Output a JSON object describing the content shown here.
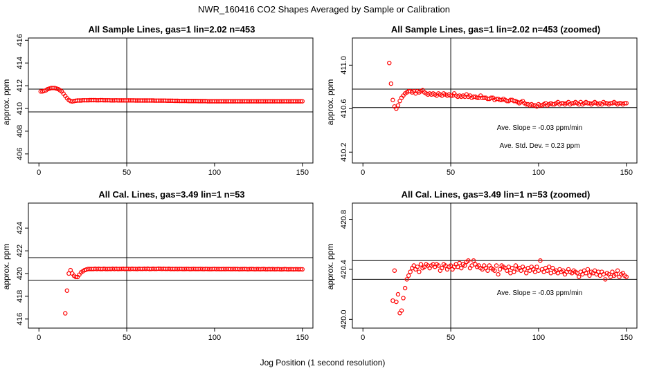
{
  "page_title": "NWR_160416  CO2 Shapes Averaged by Sample or Calibration",
  "shared_xlabel": "Jog Position (1 second resolution)",
  "chart_data": [
    {
      "type": "scatter",
      "title": "All Sample Lines, gas=1 lin=2.02 n=453",
      "xlabel": "",
      "ylabel": "approx. ppm",
      "xlim": [
        -6,
        156
      ],
      "ylim": [
        405.2,
        416.2
      ],
      "xticks": [
        0,
        50,
        100,
        150
      ],
      "yticks": [
        406,
        408,
        410,
        412,
        414,
        416
      ],
      "ytick_labels": [
        "406",
        "408",
        "410",
        "412",
        "414",
        "416"
      ],
      "hlines": [
        411.7,
        409.7
      ],
      "vline": 50,
      "annotations": [],
      "x": [
        1,
        2,
        3,
        4,
        5,
        6,
        7,
        8,
        9,
        10,
        11,
        12,
        13,
        14,
        15,
        16,
        17,
        18,
        19,
        20,
        21,
        22,
        23,
        24,
        25,
        26,
        27,
        28,
        29,
        30,
        31,
        32,
        33,
        34,
        35,
        36,
        37,
        38,
        39,
        40,
        41,
        42,
        43,
        44,
        45,
        46,
        47,
        48,
        49,
        50,
        51,
        52,
        53,
        54,
        55,
        56,
        57,
        58,
        59,
        60,
        61,
        62,
        63,
        64,
        65,
        66,
        67,
        68,
        69,
        70,
        71,
        72,
        73,
        74,
        75,
        76,
        77,
        78,
        79,
        80,
        81,
        82,
        83,
        84,
        85,
        86,
        87,
        88,
        89,
        90,
        91,
        92,
        93,
        94,
        95,
        96,
        97,
        98,
        99,
        100,
        101,
        102,
        103,
        104,
        105,
        106,
        107,
        108,
        109,
        110,
        111,
        112,
        113,
        114,
        115,
        116,
        117,
        118,
        119,
        120,
        121,
        122,
        123,
        124,
        125,
        126,
        127,
        128,
        129,
        130,
        131,
        132,
        133,
        134,
        135,
        136,
        137,
        138,
        139,
        140,
        141,
        142,
        143,
        144,
        145,
        146,
        147,
        148,
        149,
        150
      ],
      "y": [
        411.5,
        411.5,
        411.55,
        411.6,
        411.7,
        411.75,
        411.8,
        411.8,
        411.8,
        411.75,
        411.7,
        411.6,
        411.5,
        411.3,
        411.1,
        410.9,
        410.75,
        410.65,
        410.62,
        410.65,
        410.68,
        410.7,
        410.7,
        410.7,
        410.72,
        410.72,
        410.72,
        410.72,
        410.73,
        410.73,
        410.73,
        410.73,
        410.72,
        410.72,
        410.73,
        410.73,
        410.72,
        410.72,
        410.72,
        410.72,
        410.71,
        410.71,
        410.71,
        410.72,
        410.71,
        410.71,
        410.71,
        410.71,
        410.71,
        410.71,
        410.71,
        410.71,
        410.71,
        410.71,
        410.7,
        410.7,
        410.7,
        410.7,
        410.7,
        410.7,
        410.7,
        410.7,
        410.7,
        410.7,
        410.7,
        410.69,
        410.69,
        410.69,
        410.69,
        410.69,
        410.69,
        410.69,
        410.68,
        410.68,
        410.68,
        410.68,
        410.67,
        410.67,
        410.67,
        410.66,
        410.66,
        410.66,
        410.66,
        410.66,
        410.65,
        410.65,
        410.65,
        410.65,
        410.65,
        410.65,
        410.64,
        410.64,
        410.64,
        410.64,
        410.64,
        410.63,
        410.63,
        410.63,
        410.63,
        410.63,
        410.63,
        410.63,
        410.63,
        410.63,
        410.63,
        410.63,
        410.63,
        410.63,
        410.63,
        410.63,
        410.63,
        410.63,
        410.63,
        410.63,
        410.63,
        410.63,
        410.63,
        410.63,
        410.63,
        410.63,
        410.63,
        410.63,
        410.63,
        410.63,
        410.63,
        410.63,
        410.63,
        410.63,
        410.63,
        410.63,
        410.63,
        410.63,
        410.63,
        410.63,
        410.63,
        410.63,
        410.63,
        410.63,
        410.63,
        410.63,
        410.63,
        410.63,
        410.63,
        410.63,
        410.63,
        410.63,
        410.63,
        410.63,
        410.63,
        410.63
      ]
    },
    {
      "type": "scatter",
      "title": "All Sample Lines, gas=1 lin=2.02 n=453 (zoomed)",
      "xlabel": "",
      "ylabel": "approx. ppm",
      "xlim": [
        -6,
        156
      ],
      "ylim": [
        410.1,
        411.25
      ],
      "xticks": [
        0,
        50,
        100,
        150
      ],
      "yticks": [
        410.2,
        410.6,
        411.0
      ],
      "ytick_labels": [
        "410.2",
        "410.6",
        "411.0"
      ],
      "hlines": [
        410.78,
        410.61
      ],
      "vline": 50,
      "annotations": [
        "Ave. Slope =  -0.03  ppm/min",
        "Ave. Std. Dev. =  0.23  ppm"
      ],
      "x": [
        15,
        16,
        17,
        18,
        19,
        20,
        21,
        22,
        23,
        24,
        25,
        26,
        27,
        28,
        29,
        30,
        31,
        32,
        33,
        34,
        35,
        36,
        37,
        38,
        39,
        40,
        41,
        42,
        43,
        44,
        45,
        46,
        47,
        48,
        49,
        50,
        51,
        52,
        53,
        54,
        55,
        56,
        57,
        58,
        59,
        60,
        61,
        62,
        63,
        64,
        65,
        66,
        67,
        68,
        69,
        70,
        71,
        72,
        73,
        74,
        75,
        76,
        77,
        78,
        79,
        80,
        81,
        82,
        83,
        84,
        85,
        86,
        87,
        88,
        89,
        90,
        91,
        92,
        93,
        94,
        95,
        96,
        97,
        98,
        99,
        100,
        101,
        102,
        103,
        104,
        105,
        106,
        107,
        108,
        109,
        110,
        111,
        112,
        113,
        114,
        115,
        116,
        117,
        118,
        119,
        120,
        121,
        122,
        123,
        124,
        125,
        126,
        127,
        128,
        129,
        130,
        131,
        132,
        133,
        134,
        135,
        136,
        137,
        138,
        139,
        140,
        141,
        142,
        143,
        144,
        145,
        146,
        147,
        148,
        149,
        150
      ],
      "y": [
        411.02,
        410.83,
        410.68,
        410.62,
        410.6,
        410.63,
        410.67,
        410.7,
        410.72,
        410.74,
        410.75,
        410.76,
        410.76,
        410.75,
        410.76,
        410.74,
        410.76,
        410.75,
        410.76,
        410.77,
        410.75,
        410.74,
        410.73,
        410.74,
        410.73,
        410.74,
        410.73,
        410.72,
        410.74,
        410.73,
        410.72,
        410.74,
        410.73,
        410.72,
        410.73,
        410.72,
        410.72,
        410.74,
        410.72,
        410.71,
        410.72,
        410.71,
        410.72,
        410.71,
        410.73,
        410.71,
        410.72,
        410.7,
        410.71,
        410.71,
        410.7,
        410.7,
        410.72,
        410.7,
        410.7,
        410.7,
        410.69,
        410.69,
        410.7,
        410.7,
        410.68,
        410.69,
        410.69,
        410.68,
        410.68,
        410.69,
        410.68,
        410.67,
        410.67,
        410.68,
        410.68,
        410.67,
        410.67,
        410.66,
        410.65,
        410.66,
        410.67,
        410.65,
        410.64,
        410.64,
        410.63,
        410.64,
        410.63,
        410.63,
        410.62,
        410.64,
        410.63,
        410.63,
        410.64,
        410.65,
        410.63,
        410.64,
        410.65,
        410.64,
        410.64,
        410.65,
        410.66,
        410.64,
        410.65,
        410.65,
        410.64,
        410.65,
        410.66,
        410.64,
        410.65,
        410.65,
        410.66,
        410.65,
        410.64,
        410.66,
        410.64,
        410.65,
        410.66,
        410.65,
        410.65,
        410.64,
        410.65,
        410.66,
        410.65,
        410.64,
        410.65,
        410.64,
        410.66,
        410.65,
        410.65,
        410.64,
        410.65,
        410.65,
        410.66,
        410.65,
        410.64,
        410.65,
        410.65,
        410.64,
        410.65,
        410.65
      ]
    },
    {
      "type": "scatter",
      "title": "All Cal. Lines, gas=3.49 lin=1 n=53",
      "xlabel": "",
      "ylabel": "approx. ppm",
      "xlim": [
        -6,
        156
      ],
      "ylim": [
        415.2,
        426.2
      ],
      "xticks": [
        0,
        50,
        100,
        150
      ],
      "yticks": [
        416,
        418,
        420,
        422,
        424
      ],
      "ytick_labels": [
        "416",
        "418",
        "420",
        "422",
        "424"
      ],
      "hlines": [
        421.4,
        419.4
      ],
      "vline": 50,
      "annotations": [],
      "x": [
        15,
        16,
        17,
        18,
        19,
        20,
        21,
        22,
        23,
        24,
        25,
        26,
        27,
        28,
        29,
        30,
        31,
        32,
        33,
        34,
        35,
        36,
        37,
        38,
        39,
        40,
        41,
        42,
        43,
        44,
        45,
        46,
        47,
        48,
        49,
        50,
        51,
        52,
        53,
        54,
        55,
        56,
        57,
        58,
        59,
        60,
        61,
        62,
        63,
        64,
        65,
        66,
        67,
        68,
        69,
        70,
        71,
        72,
        73,
        74,
        75,
        76,
        77,
        78,
        79,
        80,
        81,
        82,
        83,
        84,
        85,
        86,
        87,
        88,
        89,
        90,
        91,
        92,
        93,
        94,
        95,
        96,
        97,
        98,
        99,
        100,
        101,
        102,
        103,
        104,
        105,
        106,
        107,
        108,
        109,
        110,
        111,
        112,
        113,
        114,
        115,
        116,
        117,
        118,
        119,
        120,
        121,
        122,
        123,
        124,
        125,
        126,
        127,
        128,
        129,
        130,
        131,
        132,
        133,
        134,
        135,
        136,
        137,
        138,
        139,
        140,
        141,
        142,
        143,
        144,
        145,
        146,
        147,
        148,
        149,
        150
      ],
      "y": [
        416.5,
        418.5,
        420.0,
        420.3,
        420.0,
        419.8,
        419.7,
        419.7,
        419.9,
        420.1,
        420.2,
        420.3,
        420.35,
        420.4,
        420.4,
        420.4,
        420.4,
        420.42,
        420.4,
        420.42,
        420.4,
        420.4,
        420.42,
        420.4,
        420.4,
        420.41,
        420.4,
        420.42,
        420.4,
        420.42,
        420.4,
        420.41,
        420.41,
        420.42,
        420.4,
        420.42,
        420.41,
        420.4,
        420.42,
        420.41,
        420.41,
        420.4,
        420.42,
        420.41,
        420.41,
        420.42,
        420.41,
        420.43,
        420.4,
        420.41,
        420.42,
        420.41,
        420.41,
        420.43,
        420.42,
        420.41,
        420.42,
        420.41,
        420.41,
        420.42,
        420.4,
        420.41,
        420.4,
        420.41,
        420.4,
        420.41,
        420.41,
        420.4,
        420.4,
        420.41,
        420.41,
        420.39,
        420.4,
        420.41,
        420.4,
        420.4,
        420.4,
        420.41,
        420.4,
        420.39,
        420.41,
        420.4,
        420.39,
        420.39,
        420.4,
        420.41,
        420.39,
        420.4,
        420.39,
        420.39,
        420.4,
        420.39,
        420.4,
        420.4,
        420.39,
        420.39,
        420.4,
        420.39,
        420.4,
        420.38,
        420.39,
        420.39,
        420.4,
        420.39,
        420.38,
        420.39,
        420.4,
        420.39,
        420.38,
        420.39,
        420.39,
        420.38,
        420.39,
        420.4,
        420.38,
        420.38,
        420.39,
        420.38,
        420.39,
        420.38,
        420.38,
        420.39,
        420.38,
        420.37,
        420.38,
        420.39,
        420.38,
        420.37,
        420.38,
        420.38,
        420.37,
        420.38,
        420.38,
        420.37,
        420.38,
        420.37
      ]
    },
    {
      "type": "scatter",
      "title": "All Cal. Lines, gas=3.49 lin=1 n=53 (zoomed)",
      "xlabel": "",
      "ylabel": "approx. ppm",
      "xlim": [
        -6,
        156
      ],
      "ylim": [
        419.93,
        420.93
      ],
      "xticks": [
        0,
        50,
        100,
        150
      ],
      "yticks": [
        420.0,
        420.4,
        420.8
      ],
      "ytick_labels": [
        "420.0",
        "420.4",
        "420.8"
      ],
      "hlines": [
        420.47,
        420.32
      ],
      "vline": 50,
      "annotations": [
        "Ave. Slope =  -0.03  ppm/min"
      ],
      "x": [
        17,
        18,
        19,
        20,
        21,
        22,
        23,
        24,
        25,
        26,
        27,
        28,
        29,
        30,
        31,
        32,
        33,
        34,
        35,
        36,
        37,
        38,
        39,
        40,
        41,
        42,
        43,
        44,
        45,
        46,
        47,
        48,
        49,
        50,
        51,
        52,
        53,
        54,
        55,
        56,
        57,
        58,
        59,
        60,
        61,
        62,
        63,
        64,
        65,
        66,
        67,
        68,
        69,
        70,
        71,
        72,
        73,
        74,
        75,
        76,
        77,
        78,
        79,
        80,
        81,
        82,
        83,
        84,
        85,
        86,
        87,
        88,
        89,
        90,
        91,
        92,
        93,
        94,
        95,
        96,
        97,
        98,
        99,
        100,
        101,
        102,
        103,
        104,
        105,
        106,
        107,
        108,
        109,
        110,
        111,
        112,
        113,
        114,
        115,
        116,
        117,
        118,
        119,
        120,
        121,
        122,
        123,
        124,
        125,
        126,
        127,
        128,
        129,
        130,
        131,
        132,
        133,
        134,
        135,
        136,
        137,
        138,
        139,
        140,
        141,
        142,
        143,
        144,
        145,
        146,
        147,
        148,
        149,
        150
      ],
      "y": [
        420.15,
        420.39,
        420.14,
        420.2,
        420.05,
        420.07,
        420.17,
        420.25,
        420.32,
        420.35,
        420.38,
        420.41,
        420.43,
        420.4,
        420.42,
        420.38,
        420.44,
        420.41,
        420.42,
        420.44,
        420.43,
        420.41,
        420.43,
        420.44,
        420.42,
        420.44,
        420.43,
        420.39,
        420.41,
        420.44,
        420.43,
        420.4,
        420.42,
        420.43,
        420.4,
        420.42,
        420.44,
        420.42,
        420.45,
        420.41,
        420.44,
        420.43,
        420.46,
        420.47,
        420.41,
        420.43,
        420.47,
        420.44,
        420.42,
        420.43,
        420.41,
        420.4,
        420.43,
        420.41,
        420.39,
        420.43,
        420.41,
        420.4,
        420.39,
        420.43,
        420.36,
        420.4,
        420.43,
        420.42,
        420.41,
        420.39,
        420.42,
        420.37,
        420.41,
        420.38,
        420.43,
        420.4,
        420.41,
        420.39,
        420.42,
        420.4,
        420.37,
        420.41,
        420.39,
        420.42,
        420.4,
        420.38,
        420.42,
        420.39,
        420.47,
        420.4,
        420.38,
        420.41,
        420.39,
        420.42,
        420.37,
        420.41,
        420.38,
        420.39,
        420.37,
        420.4,
        420.38,
        420.39,
        420.36,
        420.38,
        420.4,
        420.38,
        420.37,
        420.39,
        420.38,
        420.37,
        420.34,
        420.38,
        420.36,
        420.39,
        420.37,
        420.4,
        420.35,
        420.38,
        420.37,
        420.39,
        420.36,
        420.38,
        420.35,
        420.38,
        420.36,
        420.32,
        420.37,
        420.36,
        420.34,
        420.38,
        420.35,
        420.36,
        420.39,
        420.34,
        420.36,
        420.37,
        420.35,
        420.34
      ]
    }
  ]
}
